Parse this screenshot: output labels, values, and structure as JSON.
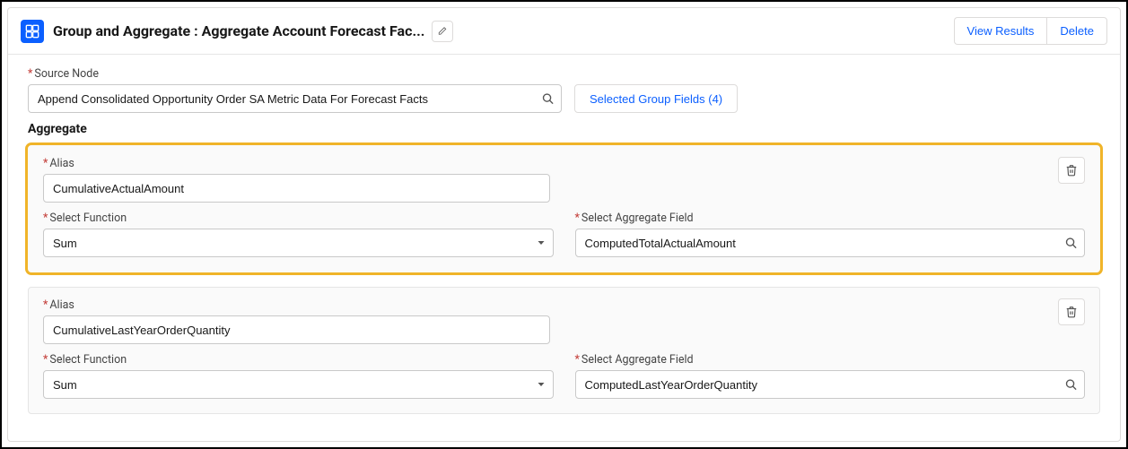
{
  "header": {
    "title_prefix": "Group and Aggregate :  ",
    "title_value": "Aggregate Account Forecast Fac...",
    "view_results": "View Results",
    "delete": "Delete"
  },
  "source": {
    "label": "Source Node",
    "value": "Append Consolidated Opportunity Order SA Metric Data For Forecast Facts"
  },
  "group_fields_btn": "Selected Group Fields (4)",
  "aggregate_title": "Aggregate",
  "labels": {
    "alias": "Alias",
    "select_function": "Select Function",
    "select_aggregate_field": "Select Aggregate Field"
  },
  "aggregates": [
    {
      "alias": "CumulativeActualAmount",
      "function": "Sum",
      "field": "ComputedTotalActualAmount",
      "highlight": true
    },
    {
      "alias": "CumulativeLastYearOrderQuantity",
      "function": "Sum",
      "field": "ComputedLastYearOrderQuantity",
      "highlight": false
    }
  ],
  "colors": {
    "accent": "#0b5fff",
    "highlight_border": "#f0b429",
    "required": "#c23934"
  }
}
